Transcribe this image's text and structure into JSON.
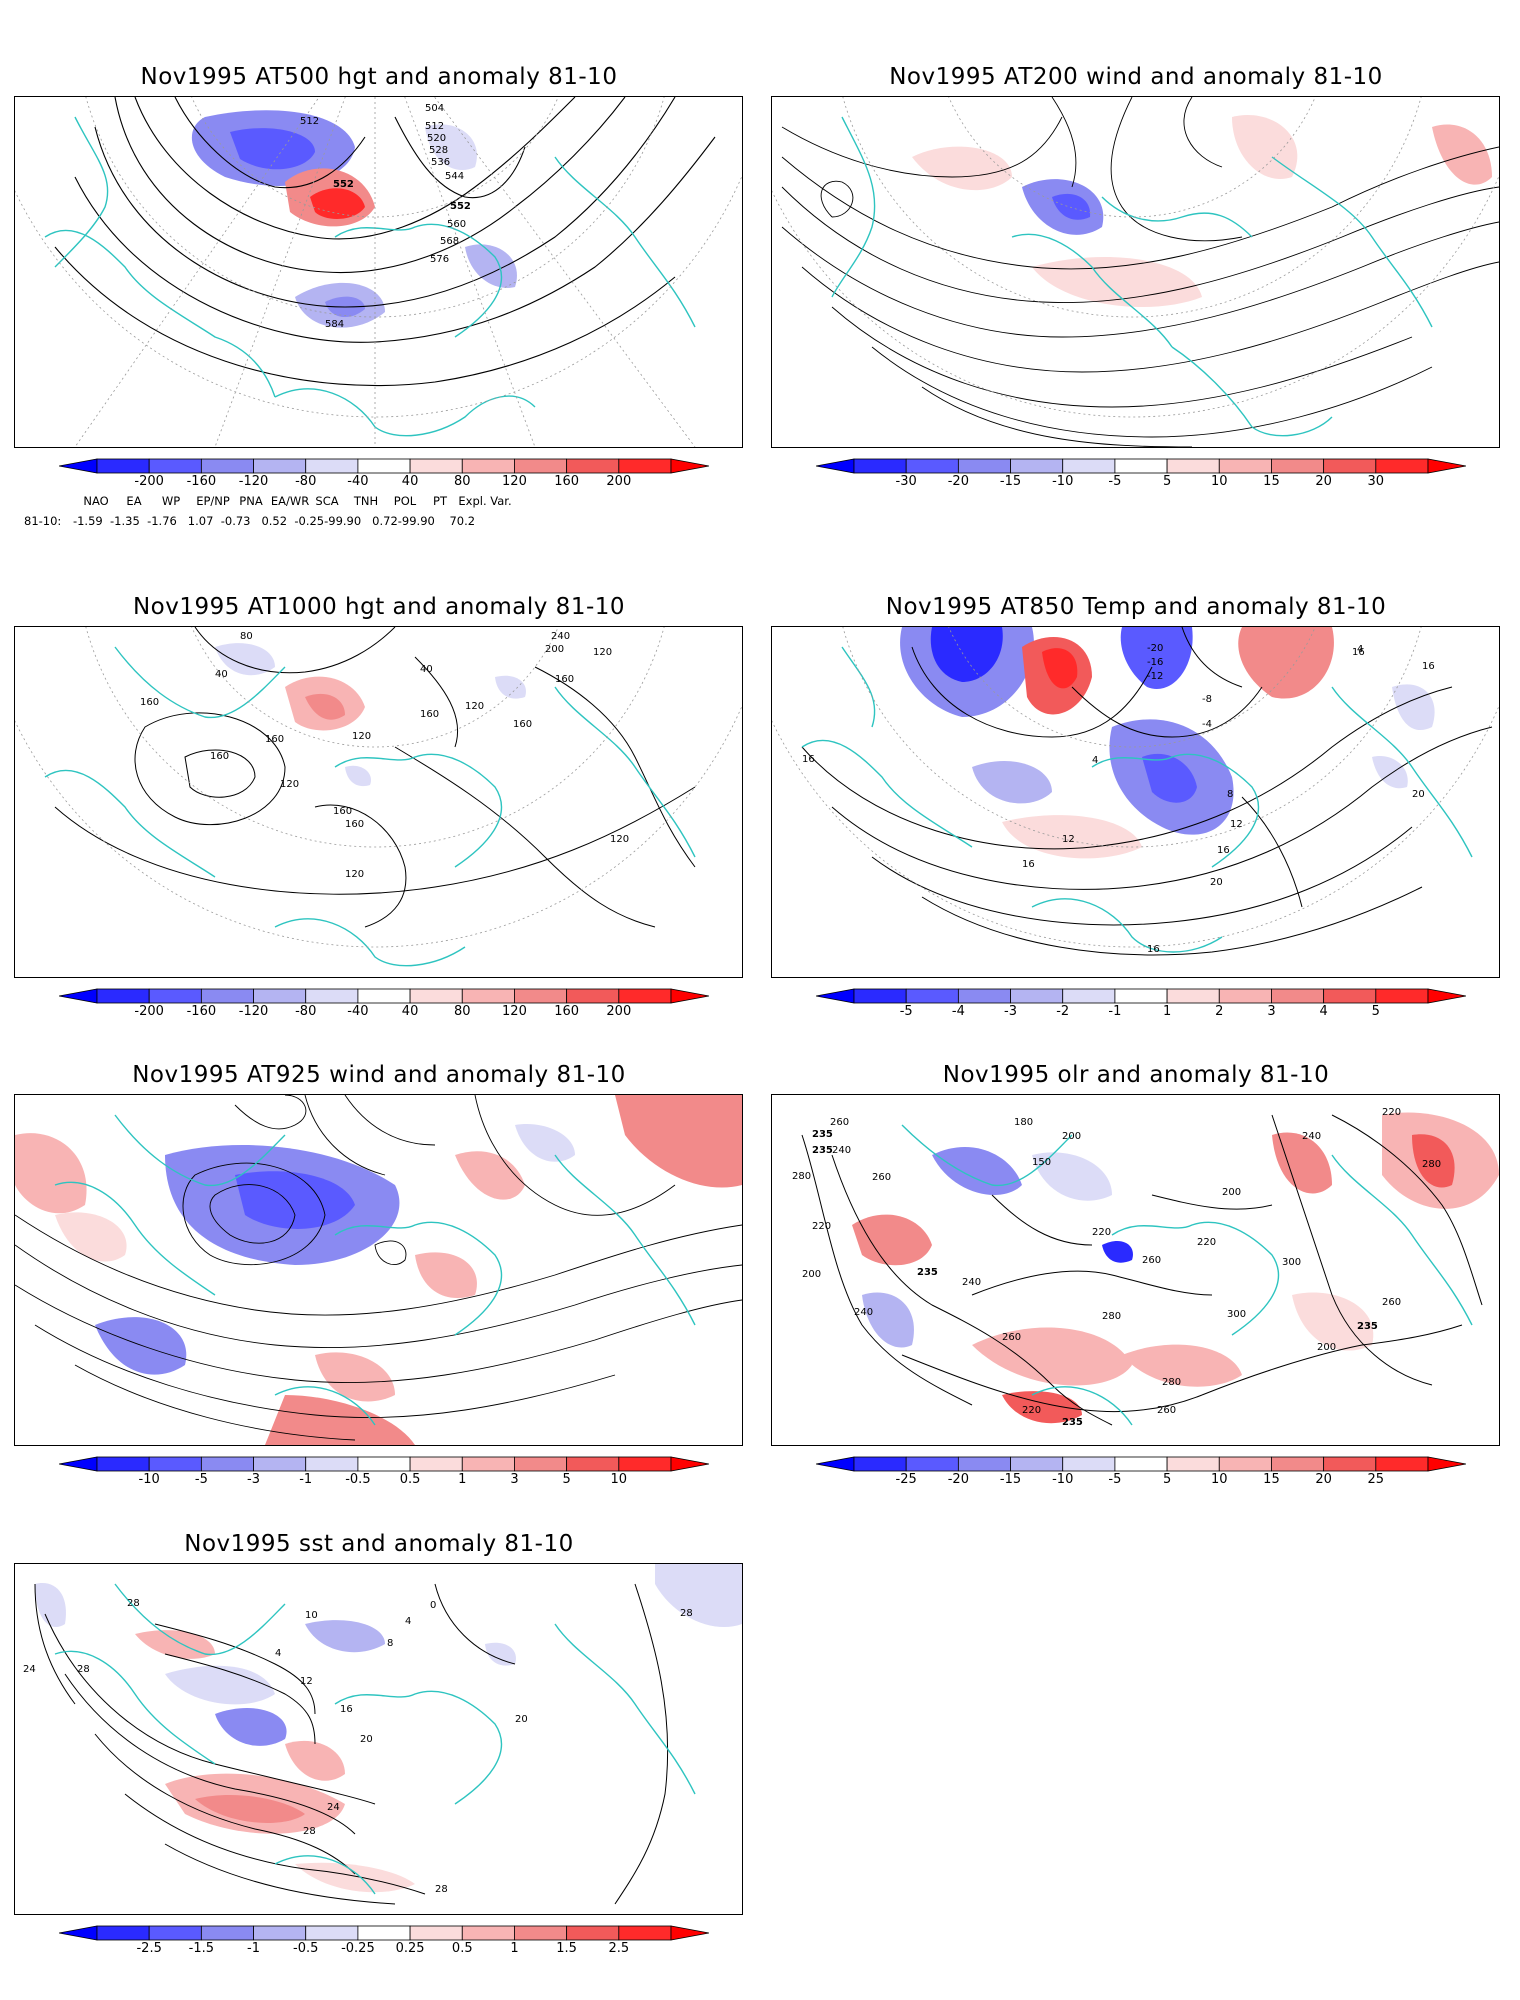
{
  "panels": [
    {
      "title": "Nov1995 AT500 hgt and anomaly 81-10",
      "colorbar": [
        "-200",
        "-160",
        "-120",
        "-80",
        "-40",
        "40",
        "80",
        "120",
        "160",
        "200"
      ],
      "contour_labels": [
        "504",
        "512",
        "512",
        "520",
        "528",
        "536",
        "544",
        "552",
        "552",
        "560",
        "568",
        "576",
        "584"
      ]
    },
    {
      "title": "Nov1995 AT200 wind and anomaly 81-10",
      "colorbar": [
        "-30",
        "-20",
        "-15",
        "-10",
        "-5",
        "5",
        "10",
        "15",
        "20",
        "30"
      ],
      "contour_labels": []
    },
    {
      "title": "Nov1995 AT1000 hgt and anomaly 81-10",
      "colorbar": [
        "-200",
        "-160",
        "-120",
        "-80",
        "-40",
        "40",
        "80",
        "120",
        "160",
        "200"
      ],
      "contour_labels": [
        "160",
        "160",
        "160",
        "120",
        "120",
        "160",
        "120",
        "160",
        "80",
        "40",
        "40",
        "200",
        "240",
        "160",
        "120",
        "120",
        "160",
        "120",
        "160"
      ]
    },
    {
      "title": "Nov1995 AT850 Temp and anomaly 81-10",
      "colorbar": [
        "-5",
        "-4",
        "-3",
        "-2",
        "-1",
        "1",
        "2",
        "3",
        "4",
        "5"
      ],
      "contour_labels": [
        "-20",
        "-16",
        "-12",
        "-8",
        "-4",
        "4",
        "8",
        "12",
        "16",
        "16",
        "16",
        "12",
        "16",
        "20",
        "20",
        "16",
        "16",
        "4"
      ]
    },
    {
      "title": "Nov1995 AT925 wind and anomaly 81-10",
      "colorbar": [
        "-10",
        "-5",
        "-3",
        "-1",
        "-0.5",
        "0.5",
        "1",
        "3",
        "5",
        "10"
      ],
      "contour_labels": []
    },
    {
      "title": "Nov1995 olr and anomaly 81-10",
      "colorbar": [
        "-25",
        "-20",
        "-15",
        "-10",
        "-5",
        "5",
        "10",
        "15",
        "20",
        "25"
      ],
      "contour_labels": [
        "235",
        "235",
        "260",
        "240",
        "280",
        "220",
        "200",
        "240",
        "235",
        "260",
        "240",
        "200",
        "180",
        "150",
        "220",
        "200",
        "220",
        "280",
        "260",
        "300",
        "260",
        "235",
        "280",
        "300",
        "280",
        "260",
        "220",
        "235",
        "200",
        "220",
        "240",
        "260"
      ]
    },
    {
      "title": "Nov1995 sst and anomaly 81-10",
      "colorbar": [
        "-2.5",
        "-1.5",
        "-1",
        "-0.5",
        "-0.25",
        "0.25",
        "0.5",
        "1",
        "1.5",
        "2.5"
      ],
      "contour_labels": [
        "28",
        "24",
        "28",
        "10",
        "0",
        "4",
        "8",
        "4",
        "12",
        "16",
        "20",
        "24",
        "28",
        "28",
        "20",
        "28"
      ]
    }
  ],
  "indices": {
    "header": [
      "NAO",
      "EA",
      "WP",
      "EP/NP",
      "PNA",
      "EA/WR",
      "SCA",
      "TNH",
      "POL",
      "PT",
      "Expl. Var."
    ],
    "row_label": "81-10:",
    "values_text": "-1.59  -1.35  -1.76   1.07  -0.73   0.52  -0.25-99.90   0.72-99.90    70.2"
  },
  "colors": {
    "coast": "#2ec4c0",
    "grid": "#9a9a9a",
    "contour": "#000000",
    "neg": [
      "#2a2aff",
      "#5a5aff",
      "#8a8af2",
      "#b4b4f2",
      "#dcdcf7"
    ],
    "pos": [
      "#fbdcdc",
      "#f8b4b4",
      "#f28a8a",
      "#f25a5a",
      "#ff2a2a"
    ]
  }
}
